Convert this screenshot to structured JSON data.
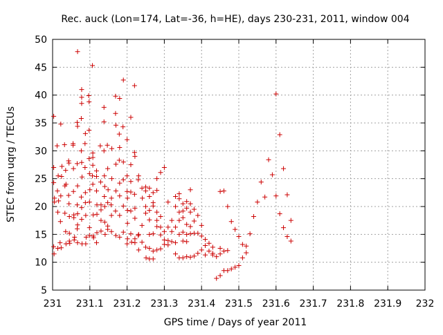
{
  "chart_data": {
    "type": "scatter",
    "title": "Rec. auck (Lon=174, Lat=-36, h=HE), days 230-231, 2011, window 004",
    "xlabel": "GPS time / Days of year 2011",
    "ylabel": "STEC from uqrg / TECUs",
    "xlim": [
      231,
      232
    ],
    "ylim": [
      5,
      50
    ],
    "x_ticks": [
      231,
      231.1,
      231.2,
      231.3,
      231.4,
      231.5,
      231.6,
      231.7,
      231.8,
      231.9,
      232
    ],
    "x_tick_labels": [
      "231",
      "231.1",
      "231.2",
      "231.3",
      "231.4",
      "231.5",
      "231.6",
      "231.7",
      "231.8",
      "231.9",
      "232"
    ],
    "y_ticks": [
      5,
      10,
      15,
      20,
      25,
      30,
      35,
      40,
      45,
      50
    ],
    "y_tick_labels": [
      "5",
      "10",
      "15",
      "20",
      "25",
      "30",
      "35",
      "40",
      "45",
      "50"
    ],
    "grid": true,
    "legend": "none",
    "marker": "plus",
    "marker_color": "#cc0000",
    "points": [
      [
        231.003,
        36.2
      ],
      [
        231.003,
        27.0
      ],
      [
        231.003,
        24.3
      ],
      [
        231.005,
        21.5
      ],
      [
        231.005,
        20.8
      ],
      [
        231.003,
        12.8
      ],
      [
        231.004,
        11.5
      ],
      [
        231.012,
        30.9
      ],
      [
        231.015,
        25.5
      ],
      [
        231.013,
        22.8
      ],
      [
        231.016,
        21.0
      ],
      [
        231.014,
        19.0
      ],
      [
        231.014,
        12.5
      ],
      [
        231.022,
        34.8
      ],
      [
        231.025,
        27.2
      ],
      [
        231.024,
        25.4
      ],
      [
        231.022,
        21.9
      ],
      [
        231.021,
        17.3
      ],
      [
        231.02,
        13.5
      ],
      [
        231.023,
        12.6
      ],
      [
        231.032,
        31.1
      ],
      [
        231.035,
        26.5
      ],
      [
        231.036,
        24.0
      ],
      [
        231.033,
        23.7
      ],
      [
        231.033,
        18.8
      ],
      [
        231.035,
        15.5
      ],
      [
        231.036,
        13.3
      ],
      [
        231.043,
        28.2
      ],
      [
        231.044,
        27.8
      ],
      [
        231.043,
        22.0
      ],
      [
        231.044,
        20.5
      ],
      [
        231.045,
        18.2
      ],
      [
        231.045,
        15.2
      ],
      [
        231.045,
        13.8
      ],
      [
        231.046,
        13.4
      ],
      [
        231.055,
        31.0
      ],
      [
        231.055,
        31.3
      ],
      [
        231.056,
        26.8
      ],
      [
        231.056,
        22.7
      ],
      [
        231.057,
        18.5
      ],
      [
        231.057,
        18.0
      ],
      [
        231.058,
        14.0
      ],
      [
        231.059,
        14.5
      ],
      [
        231.067,
        47.8
      ],
      [
        231.066,
        35.1
      ],
      [
        231.067,
        34.4
      ],
      [
        231.066,
        27.7
      ],
      [
        231.067,
        23.7
      ],
      [
        231.066,
        20.3
      ],
      [
        231.067,
        18.7
      ],
      [
        231.067,
        16.7
      ],
      [
        231.066,
        16.0
      ],
      [
        231.067,
        13.5
      ],
      [
        231.078,
        41.0
      ],
      [
        231.078,
        39.6
      ],
      [
        231.078,
        38.5
      ],
      [
        231.077,
        35.8
      ],
      [
        231.077,
        30.0
      ],
      [
        231.078,
        27.9
      ],
      [
        231.079,
        25.3
      ],
      [
        231.077,
        21.7
      ],
      [
        231.078,
        19.8
      ],
      [
        231.078,
        17.7
      ],
      [
        231.079,
        13.3
      ],
      [
        231.088,
        33.1
      ],
      [
        231.087,
        31.3
      ],
      [
        231.087,
        27.0
      ],
      [
        231.088,
        22.5
      ],
      [
        231.088,
        20.7
      ],
      [
        231.089,
        18.4
      ],
      [
        231.09,
        14.5
      ],
      [
        231.089,
        13.3
      ],
      [
        231.097,
        39.9
      ],
      [
        231.098,
        38.8
      ],
      [
        231.098,
        33.7
      ],
      [
        231.098,
        28.6
      ],
      [
        231.099,
        25.9
      ],
      [
        231.1,
        23.0
      ],
      [
        231.099,
        20.8
      ],
      [
        231.099,
        16.2
      ],
      [
        231.099,
        14.8
      ],
      [
        231.107,
        45.3
      ],
      [
        231.108,
        29.6
      ],
      [
        231.108,
        28.8
      ],
      [
        231.108,
        27.4
      ],
      [
        231.107,
        25.5
      ],
      [
        231.108,
        24.0
      ],
      [
        231.109,
        18.5
      ],
      [
        231.109,
        14.7
      ],
      [
        231.11,
        14.4
      ],
      [
        231.118,
        26.4
      ],
      [
        231.118,
        25.4
      ],
      [
        231.118,
        22.8
      ],
      [
        231.119,
        20.3
      ],
      [
        231.119,
        18.6
      ],
      [
        231.119,
        15.3
      ],
      [
        231.118,
        13.5
      ],
      [
        231.128,
        30.9
      ],
      [
        231.129,
        24.4
      ],
      [
        231.13,
        20.3
      ],
      [
        231.13,
        19.4
      ],
      [
        231.13,
        17.5
      ],
      [
        231.13,
        15.6
      ],
      [
        231.138,
        37.8
      ],
      [
        231.138,
        35.2
      ],
      [
        231.138,
        30.0
      ],
      [
        231.139,
        25.5
      ],
      [
        231.14,
        23.6
      ],
      [
        231.139,
        21.8
      ],
      [
        231.14,
        20.0
      ],
      [
        231.14,
        17.2
      ],
      [
        231.141,
        15.0
      ],
      [
        231.147,
        31.0
      ],
      [
        231.148,
        26.8
      ],
      [
        231.149,
        23.0
      ],
      [
        231.148,
        20.7
      ],
      [
        231.148,
        16.5
      ],
      [
        231.148,
        15.9
      ],
      [
        231.159,
        30.4
      ],
      [
        231.159,
        25.0
      ],
      [
        231.158,
        21.5
      ],
      [
        231.157,
        20.3
      ],
      [
        231.158,
        18.4
      ],
      [
        231.158,
        15.5
      ],
      [
        231.169,
        39.8
      ],
      [
        231.169,
        36.7
      ],
      [
        231.17,
        34.6
      ],
      [
        231.17,
        27.6
      ],
      [
        231.17,
        22.8
      ],
      [
        231.169,
        19.2
      ],
      [
        231.17,
        14.8
      ],
      [
        231.18,
        39.4
      ],
      [
        231.179,
        33.0
      ],
      [
        231.18,
        30.6
      ],
      [
        231.179,
        28.3
      ],
      [
        231.18,
        24.2
      ],
      [
        231.18,
        21.9
      ],
      [
        231.18,
        18.4
      ],
      [
        231.18,
        14.5
      ],
      [
        231.19,
        42.7
      ],
      [
        231.189,
        34.3
      ],
      [
        231.19,
        28.0
      ],
      [
        231.19,
        24.8
      ],
      [
        231.19,
        20.1
      ],
      [
        231.19,
        15.4
      ],
      [
        231.2,
        32.0
      ],
      [
        231.2,
        25.5
      ],
      [
        231.2,
        22.7
      ],
      [
        231.201,
        21.5
      ],
      [
        231.201,
        19.3
      ],
      [
        231.201,
        17.0
      ],
      [
        231.201,
        14.2
      ],
      [
        231.2,
        13.3
      ],
      [
        231.21,
        36.0
      ],
      [
        231.21,
        27.5
      ],
      [
        231.21,
        24.5
      ],
      [
        231.21,
        22.6
      ],
      [
        231.21,
        19.2
      ],
      [
        231.21,
        15.1
      ],
      [
        231.212,
        13.6
      ],
      [
        231.22,
        41.7
      ],
      [
        231.22,
        29.7
      ],
      [
        231.221,
        29.0
      ],
      [
        231.22,
        22.2
      ],
      [
        231.221,
        19.7
      ],
      [
        231.221,
        17.9
      ],
      [
        231.221,
        14.2
      ],
      [
        231.221,
        13.5
      ],
      [
        231.231,
        25.5
      ],
      [
        231.23,
        24.8
      ],
      [
        231.231,
        15.0
      ],
      [
        231.23,
        14.8
      ],
      [
        231.231,
        12.2
      ],
      [
        231.24,
        23.3
      ],
      [
        231.241,
        21.5
      ],
      [
        231.24,
        16.6
      ],
      [
        231.24,
        13.6
      ],
      [
        231.25,
        23.5
      ],
      [
        231.25,
        22.8
      ],
      [
        231.25,
        20.0
      ],
      [
        231.25,
        18.8
      ],
      [
        231.25,
        12.7
      ],
      [
        231.251,
        10.8
      ],
      [
        231.26,
        23.3
      ],
      [
        231.26,
        21.8
      ],
      [
        231.26,
        19.3
      ],
      [
        231.26,
        17.6
      ],
      [
        231.26,
        15.0
      ],
      [
        231.26,
        12.5
      ],
      [
        231.26,
        10.6
      ],
      [
        231.27,
        22.5
      ],
      [
        231.27,
        20.7
      ],
      [
        231.27,
        20.1
      ],
      [
        231.27,
        15.1
      ],
      [
        231.27,
        12.0
      ],
      [
        231.27,
        10.6
      ],
      [
        231.28,
        25.0
      ],
      [
        231.28,
        22.9
      ],
      [
        231.28,
        19.0
      ],
      [
        231.28,
        17.5
      ],
      [
        231.28,
        16.4
      ],
      [
        231.28,
        12.2
      ],
      [
        231.29,
        26.1
      ],
      [
        231.29,
        18.2
      ],
      [
        231.29,
        16.3
      ],
      [
        231.29,
        14.9
      ],
      [
        231.29,
        12.4
      ],
      [
        231.3,
        27.0
      ],
      [
        231.3,
        15.5
      ],
      [
        231.3,
        14.0
      ],
      [
        231.3,
        13.2
      ],
      [
        231.31,
        20.8
      ],
      [
        231.31,
        16.3
      ],
      [
        231.31,
        13.9
      ],
      [
        231.31,
        13.1
      ],
      [
        231.32,
        17.5
      ],
      [
        231.32,
        15.5
      ],
      [
        231.32,
        13.7
      ],
      [
        231.33,
        21.8
      ],
      [
        231.33,
        20.0
      ],
      [
        231.33,
        16.3
      ],
      [
        231.33,
        13.5
      ],
      [
        231.33,
        11.5
      ],
      [
        231.34,
        22.3
      ],
      [
        231.34,
        21.4
      ],
      [
        231.34,
        19.0
      ],
      [
        231.34,
        17.5
      ],
      [
        231.34,
        15.0
      ],
      [
        231.34,
        10.8
      ],
      [
        231.35,
        20.5
      ],
      [
        231.35,
        19.2
      ],
      [
        231.35,
        18.0
      ],
      [
        231.35,
        15.4
      ],
      [
        231.35,
        13.8
      ],
      [
        231.35,
        10.8
      ],
      [
        231.36,
        20.9
      ],
      [
        231.36,
        19.7
      ],
      [
        231.36,
        16.8
      ],
      [
        231.36,
        15.0
      ],
      [
        231.36,
        13.7
      ],
      [
        231.36,
        11.0
      ],
      [
        231.37,
        23.0
      ],
      [
        231.37,
        20.5
      ],
      [
        231.37,
        19.0
      ],
      [
        231.37,
        16.4
      ],
      [
        231.37,
        15.1
      ],
      [
        231.37,
        10.9
      ],
      [
        231.38,
        19.5
      ],
      [
        231.38,
        17.4
      ],
      [
        231.38,
        15.2
      ],
      [
        231.38,
        11.1
      ],
      [
        231.39,
        18.4
      ],
      [
        231.39,
        15.2
      ],
      [
        231.39,
        11.6
      ],
      [
        231.4,
        16.6
      ],
      [
        231.4,
        14.7
      ],
      [
        231.4,
        12.2
      ],
      [
        231.41,
        14.1
      ],
      [
        231.41,
        13.0
      ],
      [
        231.41,
        11.3
      ],
      [
        231.42,
        13.4
      ],
      [
        231.42,
        12.0
      ],
      [
        231.43,
        12.7
      ],
      [
        231.43,
        11.6
      ],
      [
        231.43,
        11.3
      ],
      [
        231.44,
        11.0
      ],
      [
        231.44,
        7.1
      ],
      [
        231.45,
        22.7
      ],
      [
        231.45,
        12.5
      ],
      [
        231.45,
        11.5
      ],
      [
        231.45,
        7.6
      ],
      [
        231.46,
        22.8
      ],
      [
        231.46,
        12.0
      ],
      [
        231.46,
        8.5
      ],
      [
        231.47,
        20.0
      ],
      [
        231.47,
        12.1
      ],
      [
        231.47,
        8.5
      ],
      [
        231.48,
        17.3
      ],
      [
        231.48,
        8.8
      ],
      [
        231.49,
        15.9
      ],
      [
        231.49,
        9.1
      ],
      [
        231.5,
        14.6
      ],
      [
        231.5,
        9.4
      ],
      [
        231.51,
        13.2
      ],
      [
        231.51,
        10.8
      ],
      [
        231.52,
        12.9
      ],
      [
        231.52,
        11.7
      ],
      [
        231.53,
        15.1
      ],
      [
        231.54,
        18.2
      ],
      [
        231.55,
        20.8
      ],
      [
        231.56,
        24.4
      ],
      [
        231.57,
        21.7
      ],
      [
        231.58,
        28.4
      ],
      [
        231.59,
        25.7
      ],
      [
        231.6,
        40.2
      ],
      [
        231.6,
        21.9
      ],
      [
        231.61,
        32.9
      ],
      [
        231.61,
        18.7
      ],
      [
        231.62,
        26.8
      ],
      [
        231.62,
        16.2
      ],
      [
        231.63,
        22.1
      ],
      [
        231.63,
        14.6
      ],
      [
        231.64,
        17.5
      ],
      [
        231.64,
        13.8
      ]
    ]
  }
}
